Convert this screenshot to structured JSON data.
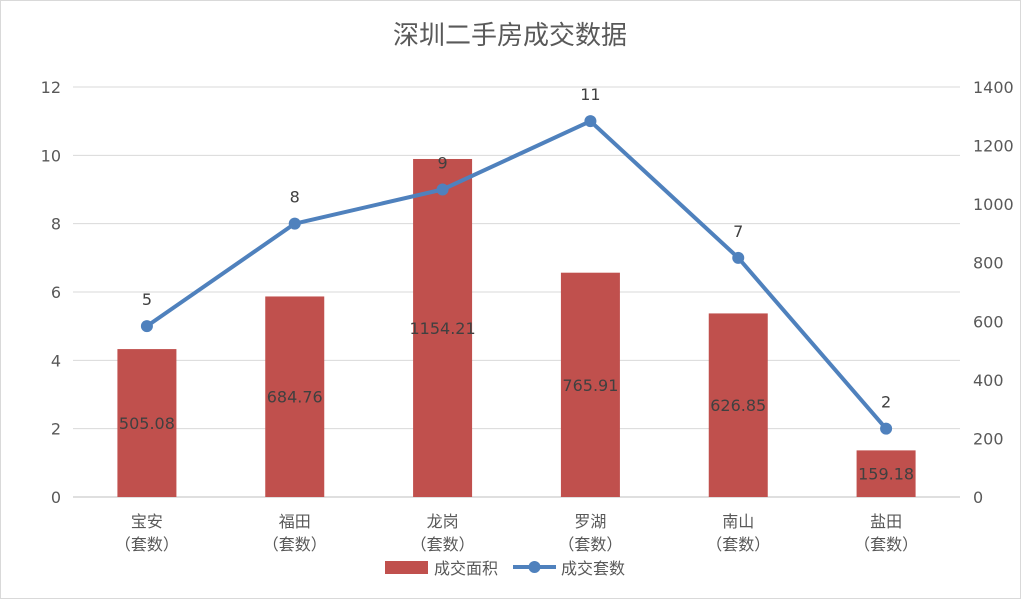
{
  "chart_data": {
    "type": "bar",
    "title": "深圳二手房成交数据",
    "categories": [
      [
        "宝安",
        "（套数）"
      ],
      [
        "福田",
        "（套数）"
      ],
      [
        "龙岗",
        "（套数）"
      ],
      [
        "罗湖",
        "（套数）"
      ],
      [
        "南山",
        "（套数）"
      ],
      [
        "盐田",
        "（套数）"
      ]
    ],
    "series": [
      {
        "name": "成交面积",
        "type": "bar",
        "axis": "right",
        "color": "#c0504d",
        "values": [
          505.08,
          684.76,
          1154.21,
          765.91,
          626.85,
          159.18
        ]
      },
      {
        "name": "成交套数",
        "type": "line",
        "axis": "left",
        "color": "#4f81bd",
        "values": [
          5,
          8,
          9,
          11,
          7,
          2
        ]
      }
    ],
    "y_left": {
      "min": 0,
      "max": 12,
      "ticks": [
        0,
        2,
        4,
        6,
        8,
        10,
        12
      ]
    },
    "y_right": {
      "min": 0,
      "max": 1400,
      "ticks": [
        0,
        200,
        400,
        600,
        800,
        1000,
        1200,
        1400
      ]
    },
    "grid": true,
    "legend_position": "bottom"
  }
}
